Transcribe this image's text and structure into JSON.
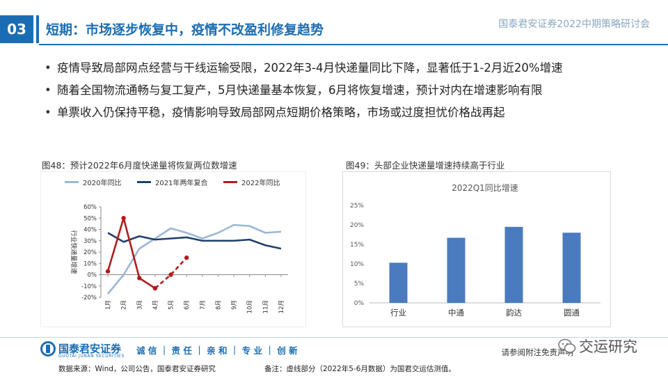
{
  "header": {
    "section_number": "03",
    "title": "短期：市场逐步恢复中，疫情不改盈利修复趋势",
    "conference": "国泰君安证券2022中期策略研讨会"
  },
  "bullets": [
    "疫情导致局部网点经营与干线运输受限，2022年3-4月快递量同比下降，显著低于1-2月近20%增速",
    "随着全国物流通畅与复工复产，5月快递量基本恢复，6月将恢复增速，预计对内在增速影响有限",
    "单票收入仍保持平稳，疫情影响导致局部网点短期价格策略，市场或过度担忧价格战再起"
  ],
  "figures": {
    "left_caption": "图48：预计2022年6月度快递量将恢复两位数增速",
    "right_caption": "图49：头部企业快递量增速持续高于行业"
  },
  "chart_data": [
    {
      "type": "line",
      "ylabel": "行业快递量增速",
      "y_tick_labels": [
        "60%",
        "50%",
        "40%",
        "30%",
        "20%",
        "10%",
        "0%",
        "-10%",
        "-20%"
      ],
      "ylim": [
        -0.2,
        0.6
      ],
      "categories": [
        "1月",
        "2月",
        "3月",
        "4月",
        "5月",
        "6月",
        "7月",
        "8月",
        "9月",
        "10月",
        "11月",
        "12月"
      ],
      "legend_position": "top",
      "grid": false,
      "series": [
        {
          "name": "2020年同比",
          "color": "#9bb7d4",
          "style": "solid",
          "values": [
            -0.17,
            0.0,
            0.23,
            0.32,
            0.41,
            0.37,
            0.32,
            0.37,
            0.44,
            0.43,
            0.37,
            0.38
          ]
        },
        {
          "name": "2021年两年复合",
          "color": "#1f3f6b",
          "style": "solid",
          "values": [
            0.37,
            0.29,
            0.34,
            0.31,
            0.32,
            0.33,
            0.3,
            0.3,
            0.3,
            0.31,
            0.26,
            0.23
          ]
        },
        {
          "name": "2022年同比",
          "color": "#b01c1c",
          "style": "solid",
          "values": [
            0.03,
            0.5,
            -0.03,
            -0.12,
            null,
            null,
            null,
            null,
            null,
            null,
            null,
            null
          ]
        },
        {
          "name": "",
          "color": "#b01c1c",
          "style": "dashed",
          "values": [
            null,
            null,
            null,
            -0.12,
            0.0,
            0.15,
            null,
            null,
            null,
            null,
            null,
            null
          ]
        }
      ]
    },
    {
      "type": "bar",
      "title": "2022Q1同比增速",
      "categories": [
        "行业",
        "中通",
        "韵达",
        "圆通"
      ],
      "values": [
        0.103,
        0.167,
        0.195,
        0.18
      ],
      "y_tick_labels": [
        "25%",
        "20%",
        "15%",
        "10%",
        "5%",
        "0%"
      ],
      "ylim": [
        0,
        0.25
      ],
      "color": "#4a7bbf",
      "grid": false
    }
  ],
  "footer": {
    "brand": "国泰君安证券",
    "brand_en": "GUOTAI JUNAN SECURITIES",
    "slogan": "诚 信 ｜ 责 任 ｜ 亲 和 ｜ 专 业 ｜ 创 新",
    "disclaimer": "请参阅附注免责声明",
    "source": "数据来源：Wind，公司公告，国泰君安证券研究",
    "note": "备注：虚线部分（2022年5-6月数据）为国君交运估测值。",
    "watermark": "交运研究"
  }
}
